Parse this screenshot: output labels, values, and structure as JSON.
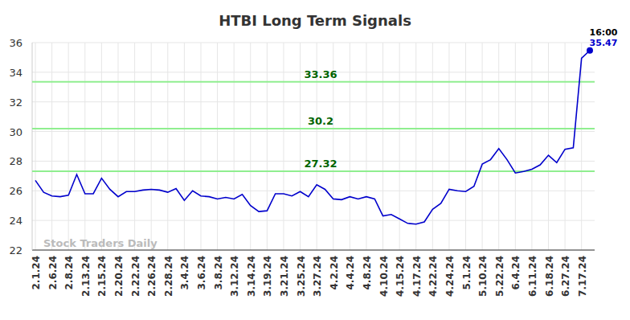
{
  "chart_data": {
    "type": "line",
    "title": "HTBI Long Term Signals",
    "watermark": "Stock Traders Daily",
    "categories": [
      "2.1.24",
      null,
      "2.6.24",
      null,
      "2.8.24",
      null,
      "2.13.24",
      null,
      "2.15.24",
      null,
      "2.20.24",
      null,
      "2.22.24",
      null,
      "2.26.24",
      null,
      "2.28.24",
      null,
      "3.4.24",
      null,
      "3.6.24",
      null,
      "3.8.24",
      null,
      "3.12.24",
      null,
      "3.14.24",
      null,
      "3.19.24",
      null,
      "3.21.24",
      null,
      "3.25.24",
      null,
      "3.27.24",
      null,
      "4.2.24",
      null,
      "4.4.24",
      null,
      "4.8.24",
      null,
      "4.10.24",
      null,
      "4.15.24",
      null,
      "4.17.24",
      null,
      "4.22.24",
      null,
      "4.24.24",
      null,
      "5.1.24",
      null,
      "5.10.24",
      null,
      "5.22.24",
      null,
      "6.4.24",
      null,
      "6.11.24",
      null,
      "6.18.24",
      null,
      "6.27.24",
      null,
      "7.17.24",
      null
    ],
    "values": [
      26.7,
      25.9,
      25.65,
      25.6,
      25.7,
      27.1,
      25.8,
      25.8,
      26.85,
      26.1,
      25.6,
      25.95,
      25.95,
      26.05,
      26.1,
      26.05,
      25.9,
      26.15,
      25.35,
      26.0,
      25.65,
      25.6,
      25.45,
      25.55,
      25.45,
      25.75,
      25.0,
      24.6,
      24.65,
      25.8,
      25.8,
      25.65,
      25.95,
      25.6,
      26.4,
      26.1,
      25.45,
      25.4,
      25.6,
      25.45,
      25.6,
      25.45,
      24.3,
      24.4,
      24.1,
      23.8,
      23.75,
      23.9,
      24.75,
      25.15,
      26.1,
      26.0,
      25.95,
      26.3,
      27.8,
      28.1,
      28.85,
      28.1,
      27.2,
      27.3,
      27.45,
      27.75,
      28.4,
      27.9,
      28.8,
      28.9,
      34.95,
      35.47
    ],
    "color": "#0000cc",
    "levels": [
      33.36,
      30.2,
      27.32
    ],
    "last_time": "16:00",
    "ylim": [
      22,
      36
    ],
    "yticks": [
      22,
      24,
      26,
      28,
      30,
      32,
      34,
      36
    ],
    "grid": true
  }
}
